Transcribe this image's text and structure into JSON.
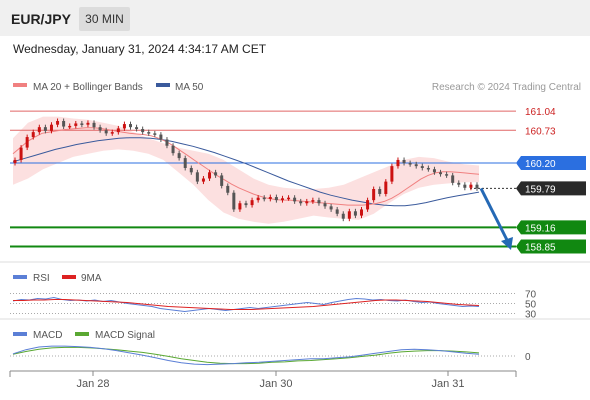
{
  "header": {
    "pair": "EUR/JPY",
    "interval": "30 MIN",
    "datetime": "Wednesday, January 31, 2024 4:34:17 AM CET"
  },
  "colors": {
    "header_bg": "#f0f0f0",
    "badge_bg": "#dcdcdc",
    "candle_up": "#cc1111",
    "candle_down": "#555555",
    "bollinger_fill": "#fbd5d5",
    "ma20": "#f08080",
    "ma50": "#3a5a9c",
    "resistance": "#e06666",
    "pivot": "#2b6fe0",
    "support": "#118811",
    "last_price_bg": "#2a2a2a",
    "arrow": "#2569b5",
    "rsi": "#5b7fd6",
    "rsi_ma": "#dd2222",
    "macd": "#5b7fd6",
    "macd_signal": "#5aa832"
  },
  "legend": {
    "ma20_bb": "MA 20 + Bollinger Bands",
    "ma50": "MA 50",
    "credit": "Research © 2024 Trading Central",
    "rsi": "RSI",
    "rsi_ma": "9MA",
    "macd": "MACD",
    "macd_signal": "MACD Signal"
  },
  "chart_data": [
    {
      "type": "line",
      "name": "EUR/JPY price",
      "ylim": [
        158.6,
        161.3
      ],
      "x_ticks": [
        "Jan 28",
        "Jan 30",
        "Jan 31"
      ],
      "close": [
        160.25,
        160.45,
        160.62,
        160.7,
        160.78,
        160.72,
        160.82,
        160.88,
        160.79,
        160.8,
        160.84,
        160.82,
        160.85,
        160.78,
        160.73,
        160.68,
        160.7,
        160.76,
        160.83,
        160.78,
        160.75,
        160.7,
        160.68,
        160.66,
        160.58,
        160.48,
        160.36,
        160.28,
        160.12,
        160.05,
        159.9,
        159.95,
        160.05,
        160.0,
        159.83,
        159.72,
        159.45,
        159.55,
        159.52,
        159.6,
        159.64,
        159.62,
        159.65,
        159.6,
        159.63,
        159.64,
        159.58,
        159.55,
        159.58,
        159.6,
        159.55,
        159.5,
        159.45,
        159.38,
        159.3,
        159.42,
        159.35,
        159.45,
        159.6,
        159.78,
        159.7,
        159.9,
        160.15,
        160.25,
        160.2,
        160.18,
        160.15,
        160.12,
        160.1,
        160.05,
        160.02,
        160.0,
        159.88,
        159.85,
        159.8,
        159.85,
        159.79
      ],
      "ma20": [
        160.35,
        160.45,
        160.55,
        160.62,
        160.68,
        160.7,
        160.72,
        160.74,
        160.75,
        160.76,
        160.77,
        160.77,
        160.76,
        160.74,
        160.72,
        160.7,
        160.68,
        160.67,
        160.66,
        160.64,
        160.6,
        160.55,
        160.48,
        160.4,
        160.32,
        160.24,
        160.16,
        160.08,
        160.0,
        159.93,
        159.86,
        159.8,
        159.75,
        159.7,
        159.66,
        159.63,
        159.61,
        159.6,
        159.6,
        159.59,
        159.58,
        159.57,
        159.56,
        159.55,
        159.54,
        159.53,
        159.52,
        159.52,
        159.52,
        159.53,
        159.55,
        159.58,
        159.63,
        159.7,
        159.78,
        159.86,
        159.94,
        160.0,
        160.04,
        160.06,
        160.06,
        160.05,
        160.04,
        160.03,
        160.02
      ],
      "ma50": [
        160.22,
        160.27,
        160.32,
        160.37,
        160.42,
        160.46,
        160.5,
        160.53,
        160.56,
        160.58,
        160.6,
        160.61,
        160.61,
        160.6,
        160.58,
        160.55,
        160.51,
        160.47,
        160.42,
        160.37,
        160.31,
        160.25,
        160.19,
        160.12,
        160.05,
        159.98,
        159.91,
        159.85,
        159.79,
        159.73,
        159.68,
        159.64,
        159.6,
        159.57,
        159.54,
        159.52,
        159.51,
        159.51,
        159.53,
        159.56,
        159.6,
        159.64,
        159.67,
        159.7,
        159.73
      ],
      "bollinger_upper": [
        160.6,
        160.85,
        160.95,
        160.95,
        160.92,
        160.9,
        160.85,
        160.8,
        160.7,
        160.6,
        160.52,
        160.45,
        160.4,
        160.35,
        160.25,
        160.1,
        159.95,
        159.85,
        159.8,
        159.78,
        159.78,
        159.8,
        159.85,
        159.95,
        160.05,
        160.15,
        160.25,
        160.3,
        160.28,
        160.22,
        160.18,
        160.16
      ],
      "bollinger_lower": [
        159.85,
        159.95,
        160.1,
        160.2,
        160.3,
        160.35,
        160.4,
        160.42,
        160.4,
        160.35,
        160.25,
        160.05,
        159.85,
        159.6,
        159.4,
        159.3,
        159.25,
        159.22,
        159.25,
        159.3,
        159.35,
        159.32,
        159.3,
        159.28,
        159.38,
        159.55,
        159.7,
        159.8,
        159.85,
        159.87,
        159.89,
        159.89
      ],
      "levels": [
        {
          "label": "161.04",
          "value": 161.04,
          "kind": "resistance"
        },
        {
          "label": "160.73",
          "value": 160.73,
          "kind": "resistance"
        },
        {
          "label": "160.20",
          "value": 160.2,
          "kind": "pivot"
        },
        {
          "label": "159.79",
          "value": 159.79,
          "kind": "last"
        },
        {
          "label": "159.16",
          "value": 159.16,
          "kind": "support"
        },
        {
          "label": "158.85",
          "value": 158.85,
          "kind": "support"
        }
      ]
    },
    {
      "type": "line",
      "name": "RSI",
      "ylim": [
        25,
        75
      ],
      "y_ticks": [
        {
          "label": "70",
          "value": 70
        },
        {
          "label": "50",
          "value": 50
        },
        {
          "label": "30",
          "value": 30
        }
      ],
      "rsi": [
        55,
        58,
        57,
        60,
        59,
        62,
        58,
        56,
        57,
        55,
        57,
        54,
        56,
        53,
        50,
        48,
        46,
        44,
        40,
        38,
        36,
        34,
        36,
        38,
        40,
        38,
        36,
        38,
        40,
        42,
        40,
        42,
        44,
        46,
        48,
        50,
        52,
        50,
        48,
        52,
        55,
        58,
        60,
        59,
        57,
        58,
        56,
        55,
        57,
        54,
        52,
        53,
        50,
        48,
        46,
        44,
        45,
        44
      ],
      "rsi_ma": [
        56,
        56,
        57,
        57,
        58,
        58,
        57,
        56,
        55,
        54,
        53,
        52,
        50,
        48,
        46,
        44,
        43,
        42,
        41,
        40,
        39,
        38,
        38,
        38,
        39,
        40,
        41,
        42,
        43,
        44,
        46,
        48,
        50,
        52,
        54,
        56,
        57,
        57,
        56,
        55,
        54,
        52,
        50,
        48,
        47,
        46
      ]
    },
    {
      "type": "line",
      "name": "MACD",
      "zero_label": "0",
      "macd": [
        0.05,
        0.14,
        0.2,
        0.22,
        0.22,
        0.21,
        0.19,
        0.16,
        0.12,
        0.07,
        0.02,
        -0.04,
        -0.1,
        -0.15,
        -0.18,
        -0.19,
        -0.18,
        -0.17,
        -0.15,
        -0.14,
        -0.12,
        -0.1,
        -0.08,
        -0.06,
        -0.06,
        -0.04,
        -0.02,
        0.02,
        0.06,
        0.1,
        0.14,
        0.15,
        0.14,
        0.12,
        0.09,
        0.06,
        0.04
      ],
      "macd_signal": [
        0.04,
        0.1,
        0.15,
        0.18,
        0.19,
        0.19,
        0.18,
        0.16,
        0.14,
        0.11,
        0.08,
        0.04,
        -0.01,
        -0.06,
        -0.1,
        -0.14,
        -0.16,
        -0.17,
        -0.17,
        -0.16,
        -0.14,
        -0.13,
        -0.11,
        -0.1,
        -0.08,
        -0.06,
        -0.04,
        -0.01,
        0.02,
        0.06,
        0.09,
        0.11,
        0.12,
        0.12,
        0.11,
        0.09,
        0.07
      ]
    }
  ]
}
